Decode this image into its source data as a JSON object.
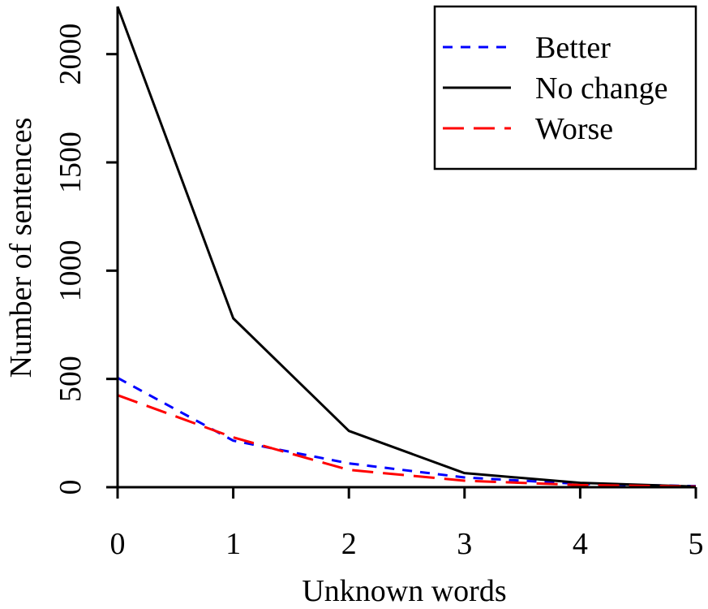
{
  "chart_data": {
    "type": "line",
    "xlabel": "Unknown words",
    "ylabel": "Number of sentences",
    "x": [
      0,
      1,
      2,
      3,
      4,
      5
    ],
    "xticks": [
      "0",
      "1",
      "2",
      "3",
      "4",
      "5"
    ],
    "yticks": [
      "0",
      "500",
      "1000",
      "1500",
      "2000"
    ],
    "xlim": [
      0,
      5
    ],
    "ylim": [
      0,
      2220
    ],
    "grid": false,
    "legend_position": "top-right",
    "series": [
      {
        "name": "Better",
        "values": [
          505,
          215,
          110,
          45,
          15,
          5
        ],
        "color": "#0000ff",
        "dash": "short-dash"
      },
      {
        "name": "No change",
        "values": [
          2220,
          780,
          260,
          65,
          20,
          3
        ],
        "color": "#000000",
        "dash": "solid"
      },
      {
        "name": "Worse",
        "values": [
          425,
          230,
          80,
          30,
          10,
          3
        ],
        "color": "#ff0000",
        "dash": "long-dash"
      }
    ]
  }
}
